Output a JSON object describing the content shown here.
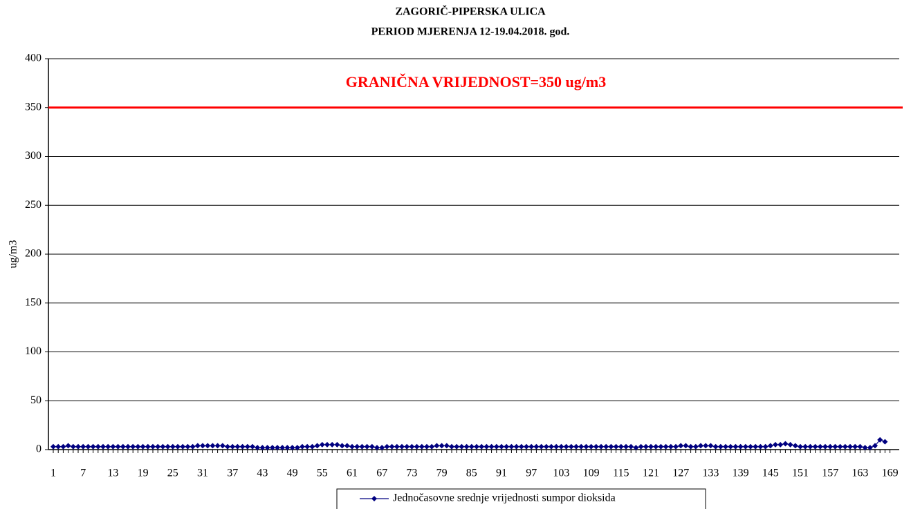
{
  "chart_data": {
    "type": "line",
    "title": "ZAGORIČ-PIPERSKA ULICA",
    "subtitle": "PERIOD MJERENJA 12-19.04.2018. god.",
    "y_label": "ug/m3",
    "threshold": {
      "value": 350,
      "label": "GRANIČNA VRIJEDNOST=350 ug/m3",
      "color": "#ff0000"
    },
    "categories": [
      1,
      null,
      null,
      null,
      null,
      null,
      7,
      null,
      null,
      null,
      null,
      null,
      13,
      null,
      null,
      null,
      null,
      null,
      19,
      null,
      null,
      null,
      null,
      null,
      25,
      null,
      null,
      null,
      null,
      null,
      31,
      null,
      null,
      null,
      null,
      null,
      37,
      null,
      null,
      null,
      null,
      null,
      43,
      null,
      null,
      null,
      null,
      null,
      49,
      null,
      null,
      null,
      null,
      null,
      55,
      null,
      null,
      null,
      null,
      null,
      61,
      null,
      null,
      null,
      null,
      null,
      67,
      null,
      null,
      null,
      null,
      null,
      73,
      null,
      null,
      null,
      null,
      null,
      79,
      null,
      null,
      null,
      null,
      null,
      85,
      null,
      null,
      null,
      null,
      null,
      91,
      null,
      null,
      null,
      null,
      null,
      97,
      null,
      null,
      null,
      null,
      null,
      103,
      null,
      null,
      null,
      null,
      null,
      109,
      null,
      null,
      null,
      null,
      null,
      115,
      null,
      null,
      null,
      null,
      null,
      121,
      null,
      null,
      null,
      null,
      null,
      127,
      null,
      null,
      null,
      null,
      null,
      133,
      null,
      null,
      null,
      null,
      null,
      139,
      null,
      null,
      null,
      null,
      null,
      145,
      null,
      null,
      null,
      null,
      null,
      151,
      null,
      null,
      null,
      null,
      null,
      157,
      null,
      null,
      null,
      null,
      null,
      163,
      null,
      null,
      null,
      null,
      null,
      169
    ],
    "series": [
      {
        "name": "Jednočasovne srednje vrijednosti sumpor dioksida",
        "color": "#000080",
        "values": [
          3,
          3,
          3,
          4,
          3,
          3,
          3,
          3,
          3,
          3,
          3,
          3,
          3,
          3,
          3,
          3,
          3,
          3,
          3,
          3,
          3,
          3,
          3,
          3,
          3,
          3,
          3,
          3,
          3,
          4,
          4,
          4,
          4,
          4,
          4,
          3,
          3,
          3,
          3,
          3,
          3,
          2,
          2,
          2,
          2,
          2,
          2,
          2,
          2,
          2,
          3,
          3,
          3,
          4,
          5,
          5,
          5,
          5,
          4,
          4,
          3,
          3,
          3,
          3,
          3,
          2,
          2,
          3,
          3,
          3,
          3,
          3,
          3,
          3,
          3,
          3,
          3,
          4,
          4,
          4,
          3,
          3,
          3,
          3,
          3,
          3,
          3,
          3,
          3,
          3,
          3,
          3,
          3,
          3,
          3,
          3,
          3,
          3,
          3,
          3,
          3,
          3,
          3,
          3,
          3,
          3,
          3,
          3,
          3,
          3,
          3,
          3,
          3,
          3,
          3,
          3,
          3,
          2,
          3,
          3,
          3,
          3,
          3,
          3,
          3,
          3,
          4,
          4,
          3,
          3,
          4,
          4,
          4,
          3,
          3,
          3,
          3,
          3,
          3,
          3,
          3,
          3,
          3,
          3,
          4,
          5,
          5,
          6,
          5,
          4,
          3,
          3,
          3,
          3,
          3,
          3,
          3,
          3,
          3,
          3,
          3,
          3,
          3,
          2,
          2,
          4,
          10,
          8,
          null
        ]
      }
    ],
    "ylim": [
      0,
      400
    ],
    "yticks": [
      0,
      50,
      100,
      150,
      200,
      250,
      300,
      350,
      400
    ],
    "grid": true
  }
}
